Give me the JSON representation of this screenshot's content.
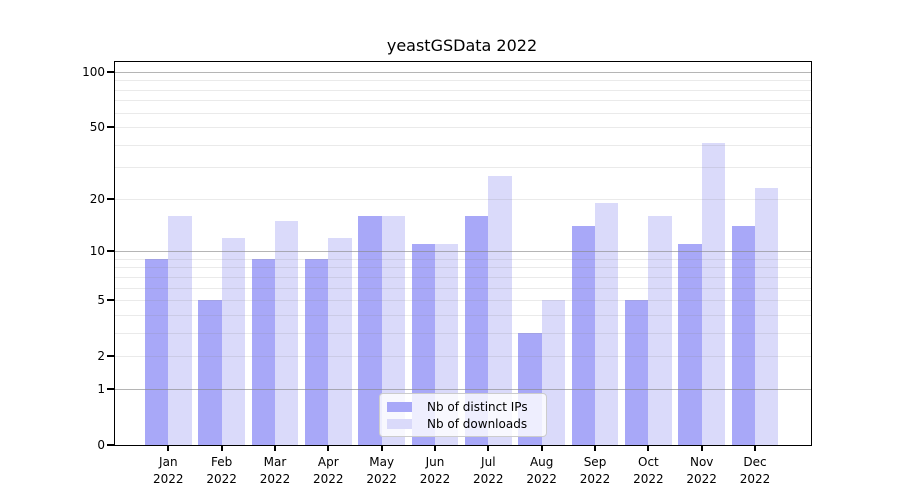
{
  "title": "yeastGSData 2022",
  "colors": {
    "ips_bar": "#a8a8f8",
    "downloads_bar": "#dadafa",
    "grid_major": "#b0b0b0",
    "grid_minor": "#e9e9e9",
    "axis_line": "#000000",
    "text": "#000000",
    "legend_border": "#cccccc",
    "legend_bg": "#ffffff"
  },
  "chart_data": {
    "type": "bar",
    "title": "yeastGSData 2022",
    "categories": [
      "Jan 2022",
      "Feb 2022",
      "Mar 2022",
      "Apr 2022",
      "May 2022",
      "Jun 2022",
      "Jul 2022",
      "Aug 2022",
      "Sep 2022",
      "Oct 2022",
      "Nov 2022",
      "Dec 2022"
    ],
    "x_tick_lines": [
      [
        "Jan",
        "2022"
      ],
      [
        "Feb",
        "2022"
      ],
      [
        "Mar",
        "2022"
      ],
      [
        "Apr",
        "2022"
      ],
      [
        "May",
        "2022"
      ],
      [
        "Jun",
        "2022"
      ],
      [
        "Jul",
        "2022"
      ],
      [
        "Aug",
        "2022"
      ],
      [
        "Sep",
        "2022"
      ],
      [
        "Oct",
        "2022"
      ],
      [
        "Nov",
        "2022"
      ],
      [
        "Dec",
        "2022"
      ]
    ],
    "series": [
      {
        "name": "Nb of distinct IPs",
        "color": "#a8a8f8",
        "values": [
          9,
          5,
          9,
          9,
          16,
          11,
          16,
          3,
          14,
          5,
          11,
          14
        ]
      },
      {
        "name": "Nb of downloads",
        "color": "#dadafa",
        "values": [
          16,
          12,
          15,
          12,
          16,
          11,
          27,
          5,
          19,
          16,
          41,
          23
        ]
      }
    ],
    "xlabel": "",
    "ylabel": "",
    "y_axis": {
      "scale": "log1p",
      "ticks": [
        0,
        1,
        2,
        5,
        10,
        20,
        50,
        100
      ],
      "major_gridlines": [
        1,
        10,
        100
      ],
      "minor_gridlines": [
        2,
        3,
        4,
        5,
        6,
        7,
        8,
        9,
        20,
        30,
        40,
        50,
        60,
        70,
        80,
        90
      ],
      "ylim": [
        0,
        115
      ]
    },
    "grid": true,
    "legend": {
      "position": "lower center",
      "entries": [
        "Nb of distinct IPs",
        "Nb of downloads"
      ]
    }
  }
}
